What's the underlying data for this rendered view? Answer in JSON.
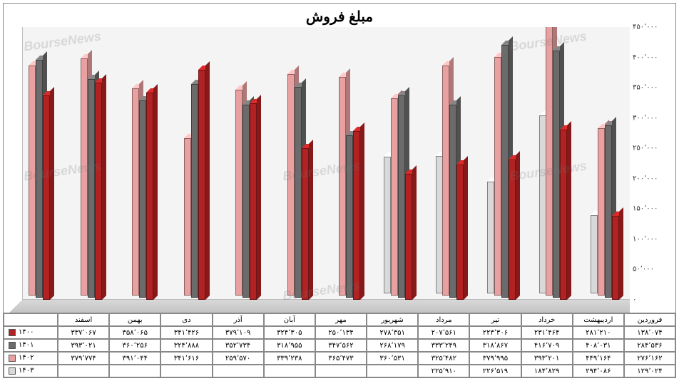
{
  "title": "مبلغ فروش",
  "watermark_text": "BourseNews",
  "chart": {
    "type": "bar-3d",
    "ylim": [
      0,
      450000
    ],
    "ytick_step": 50000,
    "ytick_labels": [
      "۰",
      "۵۰٬۰۰۰",
      "۱۰۰٬۰۰۰",
      "۱۵۰٬۰۰۰",
      "۲۰۰٬۰۰۰",
      "۲۵۰٬۰۰۰",
      "۳۰۰٬۰۰۰",
      "۳۵۰٬۰۰۰",
      "۴۰۰٬۰۰۰",
      "۴۵۰٬۰۰۰"
    ],
    "background_color": "#f4f4f4",
    "grid_color": "#d0d0d0",
    "floor_color": "#cccccc",
    "categories": [
      "اسفند",
      "بهمن",
      "دی",
      "آذر",
      "آبان",
      "مهر",
      "شهریور",
      "مرداد",
      "تیر",
      "خرداد",
      "اردیبهشت",
      "فروردین"
    ],
    "series": [
      {
        "name": "۱۴۰۰",
        "color": "#b22222",
        "values": [
          337067,
          358065,
          341426,
          379109,
          324305,
          250134,
          278351,
          207561,
          223306,
          231464,
          281210,
          138074
        ],
        "labels": [
          "۳۳۷٬۰۶۷",
          "۳۵۸٬۰۶۵",
          "۳۴۱٬۴۲۶",
          "۳۷۹٬۱۰۹",
          "۳۲۴٬۳۰۵",
          "۲۵۰٬۱۳۴",
          "۲۷۸٬۳۵۱",
          "۲۰۷٬۵۶۱",
          "۲۲۳٬۳۰۶",
          "۲۳۱٬۴۶۴",
          "۲۸۱٬۲۱۰",
          "۱۳۸٬۰۷۴"
        ]
      },
      {
        "name": "۱۴۰۱",
        "color": "#6b6b6b",
        "values": [
          393021,
          360256,
          324888,
          352734,
          318955,
          347562,
          268179,
          333249,
          318867,
          416709,
          408031,
          284536
        ],
        "labels": [
          "۳۹۳٬۰۲۱",
          "۳۶۰٬۲۵۶",
          "۳۲۴٬۸۸۸",
          "۳۵۲٬۷۳۴",
          "۳۱۸٬۹۵۵",
          "۳۴۷٬۵۶۲",
          "۲۶۸٬۱۷۹",
          "۳۳۳٬۲۴۹",
          "۳۱۸٬۸۶۷",
          "۴۱۶٬۷۰۹",
          "۴۰۸٬۰۳۱",
          "۲۸۴٬۵۳۶"
        ]
      },
      {
        "name": "۱۴۰۲",
        "color": "#e9a0a0",
        "values": [
          379774,
          391044,
          341616,
          259570,
          339238,
          365473,
          360531,
          325482,
          379995,
          393201,
          449164,
          276162
        ],
        "labels": [
          "۳۷۹٬۷۷۴",
          "۳۹۱٬۰۴۴",
          "۳۴۱٬۶۱۶",
          "۲۵۹٬۵۷۰",
          "۳۳۹٬۲۳۸",
          "۳۶۵٬۴۷۳",
          "۳۶۰٬۵۳۱",
          "۳۲۵٬۴۸۲",
          "۳۷۹٬۹۹۵",
          "۳۹۳٬۲۰۱",
          "۴۴۹٬۱۶۴",
          "۲۷۶٬۱۶۲"
        ]
      },
      {
        "name": "۱۴۰۳",
        "color": "#d9d9d9",
        "values": [
          null,
          null,
          null,
          null,
          null,
          null,
          null,
          225910,
          226519,
          184829,
          294086,
          129024
        ],
        "labels": [
          "",
          "",
          "",
          "",
          "",
          "",
          "",
          "۲۲۵٬۹۱۰",
          "۲۲۶٬۵۱۹",
          "۱۸۴٬۸۲۹",
          "۲۹۴٬۰۸۶",
          "۱۲۹٬۰۲۴"
        ]
      }
    ]
  }
}
